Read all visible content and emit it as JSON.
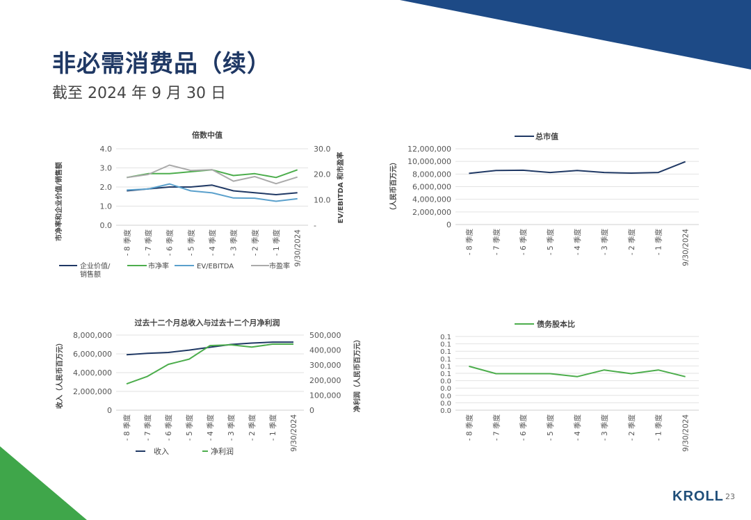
{
  "header": {
    "title": "非必需消费品（续）",
    "subtitle": "截至 2024 年 9 月 30 日"
  },
  "footer": {
    "logo": "KROLL",
    "page_number": "23"
  },
  "colors": {
    "navy": "#1f3864",
    "green": "#4cad4c",
    "lightblue": "#5aa0cc",
    "grey": "#aaaaaa",
    "corner_blue": "#1d4a86",
    "corner_green": "#3fa64a"
  },
  "categories": [
    "- 8 季度",
    "- 7 季度",
    "- 6 季度",
    "- 5 季度",
    "- 4 季度",
    "- 3 季度",
    "- 2 季度",
    "- 1 季度",
    "9/30/2024"
  ],
  "chart_data": [
    {
      "id": "multiples",
      "type": "line",
      "title": "倍数中值",
      "ylabel": "市净率和企业价值/销售额",
      "y2label": "EV/EBITDA 和市盈率",
      "ylim": [
        0,
        4
      ],
      "yticks": [
        "0.0",
        "1.0",
        "2.0",
        "3.0",
        "4.0"
      ],
      "y2lim": [
        0,
        30
      ],
      "y2ticks": [
        "-",
        "10.0",
        "20.0",
        "30.0"
      ],
      "legend": [
        "企业价值/\n销售额",
        "市净率",
        "EV/EBITDA",
        "市盈率"
      ],
      "series": [
        {
          "name": "企业价值/销售额",
          "axis": "left",
          "color": "#1f3864",
          "values": [
            1.8,
            1.9,
            2.0,
            2.0,
            2.1,
            1.8,
            1.7,
            1.6,
            1.7
          ]
        },
        {
          "name": "市净率",
          "axis": "left",
          "color": "#4cad4c",
          "values": [
            2.5,
            2.7,
            2.7,
            2.8,
            2.9,
            2.6,
            2.7,
            2.5,
            2.9
          ]
        },
        {
          "name": "EV/EBITDA",
          "axis": "right",
          "color": "#5aa0cc",
          "values": [
            13.8,
            14.2,
            16.2,
            13.5,
            12.7,
            10.7,
            10.6,
            9.4,
            10.4
          ]
        },
        {
          "name": "市盈率",
          "axis": "right",
          "color": "#aaaaaa",
          "values": [
            18.7,
            19.9,
            23.6,
            21.5,
            21.8,
            17.3,
            19.1,
            16.3,
            18.9
          ]
        }
      ]
    },
    {
      "id": "market_cap",
      "type": "line",
      "title": "总市值",
      "legend": [
        "总市值"
      ],
      "ylabel": "（人民币百万元）",
      "ylim": [
        0,
        12000000
      ],
      "yticks": [
        "0",
        "2,000,000",
        "4,000,000",
        "6,000,000",
        "8,000,000",
        "10,000,000",
        "12,000,000"
      ],
      "series": [
        {
          "name": "总市值",
          "color": "#1f3864",
          "values": [
            8100000,
            8550000,
            8600000,
            8250000,
            8550000,
            8250000,
            8150000,
            8250000,
            9950000
          ]
        }
      ]
    },
    {
      "id": "revenue_income",
      "type": "line",
      "title": "过去十二个月总收入与过去十二个月净利润",
      "ylabel": "收入（人民币百万元）",
      "y2label": "净利润（人民币百万元）",
      "ylim": [
        0,
        8000000
      ],
      "yticks": [
        "0",
        "2,000,000",
        "4,000,000",
        "6,000,000",
        "8,000,000"
      ],
      "y2lim": [
        0,
        500000
      ],
      "y2ticks": [
        "0",
        "100,000",
        "200,000",
        "300,000",
        "400,000",
        "500,000"
      ],
      "legend": [
        "收入",
        "净利润"
      ],
      "series": [
        {
          "name": "收入",
          "axis": "left",
          "color": "#1f3864",
          "values": [
            5900000,
            6050000,
            6150000,
            6400000,
            6700000,
            7000000,
            7150000,
            7250000,
            7250000
          ]
        },
        {
          "name": "净利润",
          "axis": "right",
          "color": "#4cad4c",
          "values": [
            175000,
            225000,
            305000,
            340000,
            430000,
            435000,
            420000,
            440000,
            440000
          ]
        }
      ]
    },
    {
      "id": "debt_equity",
      "type": "line",
      "title": "债务股本比",
      "legend": [
        "债务股本比"
      ],
      "ylim": [
        0,
        0.1
      ],
      "yticks": [
        "0.0",
        "0.0",
        "0.0",
        "0.0",
        "0.0",
        "0.1",
        "0.1",
        "0.1",
        "0.1",
        "0.1",
        "0.1"
      ],
      "series": [
        {
          "name": "债务股本比",
          "color": "#4cad4c",
          "values": [
            0.0595,
            0.0495,
            0.0495,
            0.0495,
            0.0455,
            0.0545,
            0.0495,
            0.0545,
            0.0455
          ]
        }
      ]
    }
  ]
}
